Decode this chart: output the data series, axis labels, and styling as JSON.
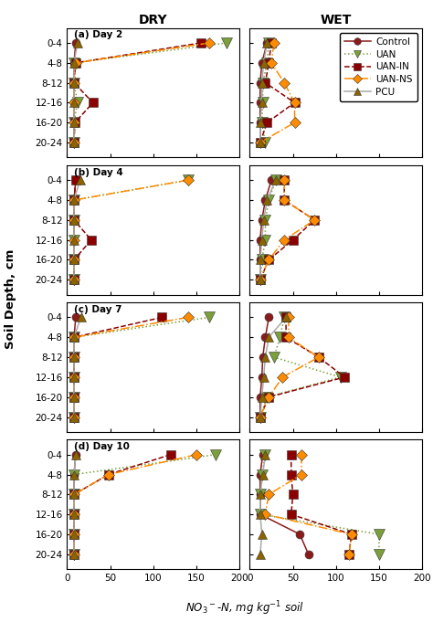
{
  "depth_labels": [
    "0-4",
    "4-8",
    "8-12",
    "12-16",
    "16-20",
    "20-24"
  ],
  "depth_values": [
    2,
    6,
    10,
    14,
    18,
    22
  ],
  "panels": [
    {
      "label": "(a) Day 2",
      "dry": {
        "Control": [
          10,
          8,
          8,
          8,
          8,
          8
        ],
        "UAN": [
          185,
          8,
          8,
          12,
          8,
          8
        ],
        "UAN_IN": [
          155,
          10,
          8,
          30,
          9,
          8
        ],
        "UAN_NS": [
          165,
          10,
          8,
          8,
          8,
          8
        ],
        "PCU": [
          12,
          8,
          8,
          8,
          8,
          8
        ]
      },
      "wet": {
        "Control": [
          20,
          14,
          12,
          12,
          12,
          12
        ],
        "UAN": [
          22,
          20,
          15,
          15,
          14,
          18
        ],
        "UAN_IN": [
          25,
          22,
          18,
          52,
          20,
          12
        ],
        "UAN_NS": [
          28,
          25,
          40,
          52,
          52,
          12
        ],
        "PCU": [
          20,
          16,
          14,
          14,
          12,
          12
        ]
      }
    },
    {
      "label": "(b) Day 4",
      "dry": {
        "Control": [
          10,
          8,
          8,
          8,
          8,
          8
        ],
        "UAN": [
          140,
          8,
          8,
          8,
          8,
          8
        ],
        "UAN_IN": [
          10,
          8,
          8,
          28,
          8,
          8
        ],
        "UAN_NS": [
          140,
          8,
          8,
          8,
          8,
          8
        ],
        "PCU": [
          15,
          8,
          8,
          8,
          8,
          8
        ]
      },
      "wet": {
        "Control": [
          25,
          18,
          14,
          12,
          12,
          12
        ],
        "UAN": [
          30,
          22,
          18,
          18,
          14,
          12
        ],
        "UAN_IN": [
          40,
          40,
          75,
          50,
          22,
          12
        ],
        "UAN_NS": [
          40,
          40,
          75,
          40,
          22,
          12
        ],
        "PCU": [
          30,
          20,
          16,
          14,
          12,
          12
        ]
      }
    },
    {
      "label": "(c) Day 7",
      "dry": {
        "Control": [
          10,
          8,
          8,
          8,
          8,
          8
        ],
        "UAN": [
          165,
          8,
          8,
          8,
          8,
          8
        ],
        "UAN_IN": [
          110,
          8,
          8,
          8,
          8,
          8
        ],
        "UAN_NS": [
          140,
          8,
          8,
          8,
          8,
          8
        ],
        "PCU": [
          16,
          8,
          8,
          8,
          8,
          8
        ]
      },
      "wet": {
        "Control": [
          22,
          18,
          15,
          14,
          12,
          12
        ],
        "UAN": [
          40,
          35,
          28,
          105,
          20,
          12
        ],
        "UAN_IN": [
          42,
          42,
          80,
          110,
          22,
          12
        ],
        "UAN_NS": [
          45,
          45,
          80,
          38,
          22,
          12
        ],
        "PCU": [
          42,
          22,
          18,
          16,
          14,
          12
        ]
      }
    },
    {
      "label": "(d) Day 10",
      "dry": {
        "Control": [
          10,
          8,
          8,
          8,
          8,
          8
        ],
        "UAN": [
          172,
          8,
          8,
          8,
          8,
          8
        ],
        "UAN_IN": [
          120,
          48,
          8,
          8,
          8,
          8
        ],
        "UAN_NS": [
          150,
          48,
          8,
          8,
          8,
          8
        ],
        "PCU": [
          10,
          8,
          8,
          8,
          8,
          8
        ]
      },
      "wet": {
        "Control": [
          15,
          12,
          12,
          12,
          58,
          68
        ],
        "UAN": [
          18,
          14,
          12,
          12,
          150,
          150
        ],
        "UAN_IN": [
          48,
          48,
          50,
          48,
          118,
          115
        ],
        "UAN_NS": [
          60,
          60,
          22,
          18,
          118,
          115
        ],
        "PCU": [
          18,
          15,
          12,
          12,
          14,
          12
        ]
      }
    }
  ],
  "series_styles": {
    "Control": {
      "color": "#8B1A1A",
      "line_color": "#8B1A1A",
      "marker": "o",
      "linestyle": "-",
      "markersize": 6.5
    },
    "UAN": {
      "color": "#7BA03A",
      "line_color": "#7BA03A",
      "marker": "v",
      "linestyle": ":",
      "markersize": 8
    },
    "UAN_IN": {
      "color": "#8B0000",
      "line_color": "#8B0000",
      "marker": "s",
      "linestyle": "--",
      "markersize": 6.5
    },
    "UAN_NS": {
      "color": "#FF8C00",
      "line_color": "#FF8C00",
      "marker": "D",
      "linestyle": "-.",
      "markersize": 6.5
    },
    "PCU": {
      "color": "#8B6400",
      "line_color": "#AAAAAA",
      "marker": "^",
      "linestyle": "-",
      "markersize": 6.5
    }
  },
  "legend_labels": {
    "Control": "Control",
    "UAN": "UAN",
    "UAN_IN": "UAN-IN",
    "UAN_NS": "UAN-NS",
    "PCU": "PCU"
  },
  "xlabel": "NO$_3$$^-$-N, mg kg$^{-1}$ soil",
  "ylabel": "Soil Depth, cm",
  "dry_title": "DRY",
  "wet_title": "WET",
  "xlim": [
    0,
    200
  ],
  "xticks": [
    0,
    50,
    100,
    150,
    200
  ],
  "background_color": "#ffffff"
}
